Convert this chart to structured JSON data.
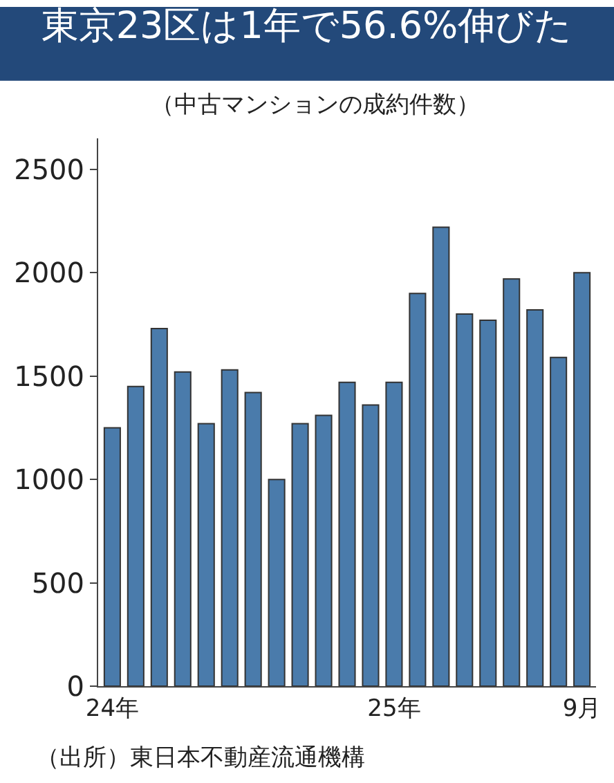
{
  "chart_data": {
    "type": "bar",
    "title": "東京23区は1年で56.6%伸びた",
    "subtitle": "（中古マンションの成約件数）",
    "categories": [
      "24年",
      null,
      null,
      null,
      null,
      null,
      null,
      null,
      null,
      null,
      null,
      null,
      "25年",
      null,
      null,
      null,
      null,
      null,
      null,
      null,
      "9月"
    ],
    "values": [
      1250,
      1450,
      1730,
      1520,
      1270,
      1530,
      1420,
      1000,
      1270,
      1310,
      1470,
      1360,
      1470,
      1900,
      2220,
      1800,
      1770,
      1970,
      1820,
      1590,
      2000
    ],
    "color": "#4a7bab",
    "ylim": [
      0,
      2650
    ],
    "yticks": [
      0,
      500,
      1000,
      1500,
      2000,
      2500
    ],
    "grid": false,
    "legend": false,
    "annotations": [
      "（出所）東日本不動産流通機構"
    ]
  }
}
